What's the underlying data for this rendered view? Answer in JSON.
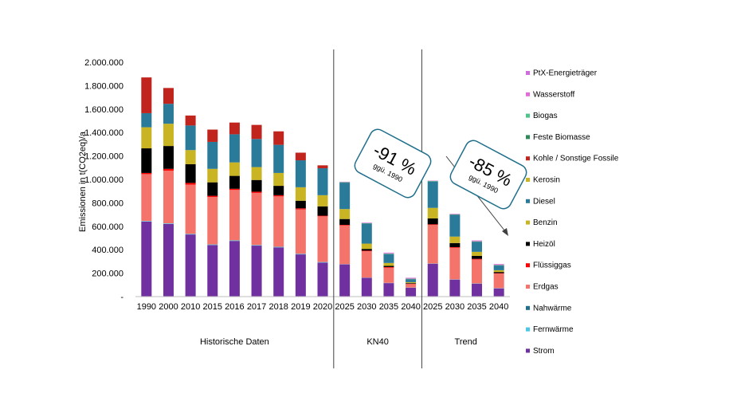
{
  "chart_data": {
    "type": "bar",
    "stacked": true,
    "ylabel": "Emissionen in t(CO2eq)/a",
    "ylim": [
      0,
      2000000
    ],
    "ytick_values": [
      0,
      200000,
      400000,
      600000,
      800000,
      1000000,
      1200000,
      1400000,
      1600000,
      1800000,
      2000000
    ],
    "ytick_labels": [
      "-",
      "200.000",
      "400.000",
      "600.000",
      "800.000",
      "1.000.000",
      "1.200.000",
      "1.400.000",
      "1.600.000",
      "1.800.000",
      "2.000.000"
    ],
    "categories": [
      "1990",
      "2000",
      "2010",
      "2015",
      "2016",
      "2017",
      "2018",
      "2019",
      "2020",
      "2025",
      "2030",
      "2035",
      "2040",
      "2025",
      "2030",
      "2035",
      "2040"
    ],
    "groups": [
      {
        "label": "Historische Daten",
        "from": 0,
        "to": 8
      },
      {
        "label": "KN40",
        "from": 9,
        "to": 12
      },
      {
        "label": "Trend",
        "from": 13,
        "to": 16
      }
    ],
    "legend_position": "right",
    "series": [
      {
        "name": "Strom",
        "color": "#7030a0",
        "values": [
          640000,
          620000,
          530000,
          440000,
          475000,
          435000,
          420000,
          360000,
          290000,
          275000,
          160000,
          115000,
          75000,
          280000,
          145000,
          110000,
          70000
        ]
      },
      {
        "name": "Fernwärme",
        "color": "#4bc8e6",
        "values": [
          5000,
          5000,
          5000,
          5000,
          5000,
          5000,
          5000,
          5000,
          5000,
          2000,
          2000,
          2000,
          2000,
          2000,
          2000,
          2000,
          2000
        ]
      },
      {
        "name": "Nahwärme",
        "color": "#1f6f8b",
        "values": [
          0,
          0,
          0,
          0,
          0,
          0,
          0,
          0,
          0,
          0,
          0,
          0,
          0,
          0,
          0,
          0,
          0
        ]
      },
      {
        "name": "Erdgas",
        "color": "#f4736b",
        "values": [
          400000,
          450000,
          420000,
          405000,
          430000,
          445000,
          430000,
          380000,
          390000,
          330000,
          225000,
          130000,
          30000,
          330000,
          270000,
          205000,
          125000
        ]
      },
      {
        "name": "Flüssiggas",
        "color": "#ff0000",
        "values": [
          10000,
          15000,
          15000,
          10000,
          10000,
          10000,
          10000,
          8000,
          5000,
          5000,
          5000,
          5000,
          3000,
          5000,
          5000,
          5000,
          3000
        ]
      },
      {
        "name": "Heizöl",
        "color": "#000000",
        "values": [
          210000,
          195000,
          160000,
          115000,
          110000,
          100000,
          80000,
          65000,
          80000,
          50000,
          15000,
          10000,
          5000,
          50000,
          35000,
          25000,
          10000
        ]
      },
      {
        "name": "Benzin",
        "color": "#c9b424",
        "values": [
          180000,
          190000,
          120000,
          115000,
          115000,
          110000,
          110000,
          115000,
          95000,
          85000,
          45000,
          25000,
          8000,
          90000,
          55000,
          35000,
          15000
        ]
      },
      {
        "name": "Diesel",
        "color": "#2a7a99",
        "values": [
          120000,
          170000,
          210000,
          230000,
          240000,
          240000,
          240000,
          230000,
          230000,
          225000,
          170000,
          75000,
          25000,
          225000,
          185000,
          85000,
          40000
        ]
      },
      {
        "name": "Kerosin",
        "color": "#c9b424",
        "values": [
          0,
          0,
          0,
          0,
          0,
          0,
          0,
          0,
          0,
          0,
          0,
          0,
          0,
          0,
          0,
          0,
          0
        ]
      },
      {
        "name": "Kohle / Sonstige Fossile",
        "color": "#c0241c",
        "values": [
          305000,
          135000,
          85000,
          105000,
          100000,
          120000,
          115000,
          65000,
          25000,
          0,
          0,
          0,
          0,
          0,
          0,
          0,
          0
        ]
      },
      {
        "name": "Feste Biomasse",
        "color": "#2e8b57",
        "values": [
          0,
          0,
          0,
          0,
          0,
          0,
          0,
          0,
          0,
          3000,
          3000,
          3000,
          3000,
          3000,
          3000,
          3000,
          3000
        ]
      },
      {
        "name": "Biogas",
        "color": "#4fc38a",
        "values": [
          0,
          0,
          0,
          0,
          0,
          0,
          0,
          0,
          0,
          2000,
          2000,
          2000,
          2000,
          2000,
          2000,
          2000,
          2000
        ]
      },
      {
        "name": "Wasserstoff",
        "color": "#e36ad9",
        "values": [
          0,
          0,
          0,
          0,
          0,
          0,
          0,
          0,
          0,
          3000,
          3000,
          6000,
          6000,
          3000,
          3000,
          6000,
          6000
        ]
      },
      {
        "name": "PtX-Energieträger",
        "color": "#d36be0",
        "values": [
          0,
          0,
          0,
          0,
          0,
          0,
          0,
          0,
          0,
          0,
          2000,
          2000,
          2000,
          0,
          2000,
          2000,
          2000
        ]
      }
    ],
    "annotations": [
      {
        "text": "-91 %",
        "subtext": "ggü. 1990"
      },
      {
        "text": "-85 %",
        "subtext": "ggü. 1990"
      }
    ]
  },
  "colors": {
    "axis": "#bfbfbf",
    "divider": "#404040",
    "callout_border": "#1f6f8b"
  }
}
